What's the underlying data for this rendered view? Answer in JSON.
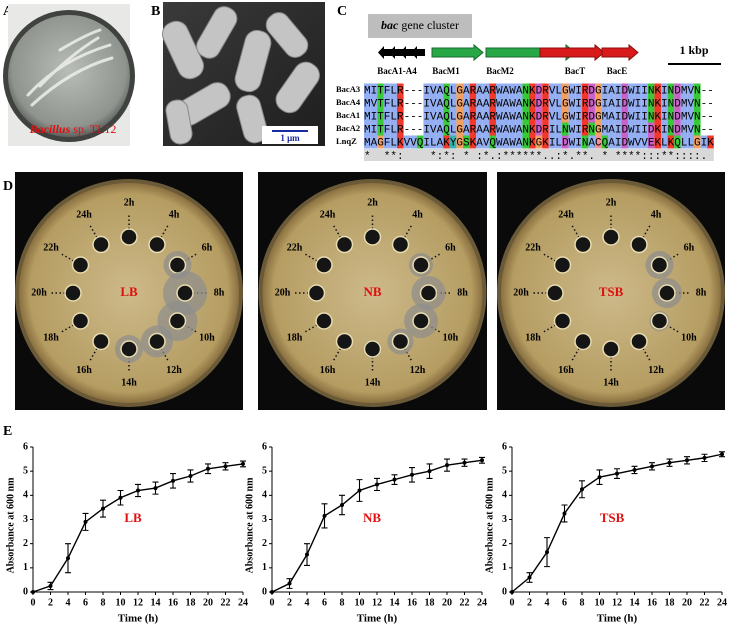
{
  "panel_a": {
    "label": "A",
    "caption_genus": "Bacillus",
    "caption_rest": "sp. TL12"
  },
  "panel_b": {
    "label": "B",
    "scale_bar": "1 μm"
  },
  "panel_c": {
    "label": "C",
    "cluster_title_italic": "bac",
    "cluster_title_rest": "gene cluster",
    "genes": [
      "BacA1-A4",
      "BacM1",
      "BacM2",
      "BacT",
      "BacE"
    ],
    "scale_bar": "1 kbp",
    "alignment": [
      {
        "name": "BacA3",
        "sequence": "MITFLR---IVAQLGARAARWAWANKDRVLGWIRDGIAIDWIINKINDMVN--"
      },
      {
        "name": "BacA4",
        "sequence": "MVTFLR---IVAQLGARAARWAWANKDRVLGWIRDGIAIDWIINKINDMVN--"
      },
      {
        "name": "BacA1",
        "sequence": "MITFLR---IVAQLGARAARWAWANKDRVLGWIRDGMAIDWIINKINDMVN--"
      },
      {
        "name": "BacA2",
        "sequence": "MITFLR---IVAQLGARAARWAWANKDRILNWIRNGMAIDWIIDKINDMVN--"
      },
      {
        "name": "LnqZ",
        "sequence": "MAGFLKVVQILAKYGSKAVQWAWANKGKILDWINACQAIDWVVEKLKQLLGIK"
      }
    ],
    "conservation": "*  **:    *:*: * :*.:******..:*.**. * ****:::**::::.  "
  },
  "panel_d": {
    "label": "D",
    "media": [
      "LB",
      "NB",
      "TSB"
    ],
    "time_labels": [
      "2h",
      "4h",
      "6h",
      "8h",
      "10h",
      "12h",
      "14h",
      "16h",
      "18h",
      "20h",
      "22h",
      "24h"
    ]
  },
  "panel_e": {
    "label": "E"
  },
  "chart_data": [
    {
      "type": "line",
      "annotation": "LB",
      "x_label": "Time (h)",
      "y_label": "Absorbance at 600 nm",
      "color": "#000000",
      "x": [
        0,
        2,
        4,
        6,
        8,
        10,
        12,
        14,
        16,
        18,
        20,
        22,
        24
      ],
      "values": [
        0,
        0.25,
        1.4,
        2.9,
        3.45,
        3.9,
        4.2,
        4.3,
        4.6,
        4.8,
        5.1,
        5.2,
        5.3
      ],
      "errors": [
        0,
        0.15,
        0.6,
        0.35,
        0.35,
        0.3,
        0.25,
        0.25,
        0.3,
        0.25,
        0.2,
        0.15,
        0.12
      ],
      "xlim": [
        0,
        24
      ],
      "xticks": [
        0,
        2,
        4,
        6,
        8,
        10,
        12,
        14,
        16,
        18,
        20,
        22,
        24
      ],
      "ylim": [
        0,
        6
      ],
      "yticks": [
        0,
        1,
        2,
        3,
        4,
        5,
        6
      ]
    },
    {
      "type": "line",
      "annotation": "NB",
      "x_label": "Time (h)",
      "y_label": "Absorbance at 600 nm",
      "color": "#000000",
      "x": [
        0,
        2,
        4,
        6,
        8,
        10,
        12,
        14,
        16,
        18,
        20,
        22,
        24
      ],
      "values": [
        0,
        0.35,
        1.55,
        3.15,
        3.6,
        4.2,
        4.45,
        4.65,
        4.85,
        5.0,
        5.25,
        5.35,
        5.45
      ],
      "errors": [
        0,
        0.2,
        0.45,
        0.5,
        0.4,
        0.45,
        0.25,
        0.2,
        0.3,
        0.3,
        0.25,
        0.15,
        0.12
      ],
      "xlim": [
        0,
        24
      ],
      "xticks": [
        0,
        2,
        4,
        6,
        8,
        10,
        12,
        14,
        16,
        18,
        20,
        22,
        24
      ],
      "ylim": [
        0,
        6
      ],
      "yticks": [
        0,
        1,
        2,
        3,
        4,
        5,
        6
      ]
    },
    {
      "type": "line",
      "annotation": "TSB",
      "x_label": "Time (h)",
      "y_label": "Absorbance at 600 nm",
      "color": "#000000",
      "x": [
        0,
        2,
        4,
        6,
        8,
        10,
        12,
        14,
        16,
        18,
        20,
        22,
        24
      ],
      "values": [
        0,
        0.6,
        1.65,
        3.25,
        4.25,
        4.75,
        4.9,
        5.05,
        5.2,
        5.35,
        5.45,
        5.55,
        5.7
      ],
      "errors": [
        0,
        0.2,
        0.6,
        0.35,
        0.35,
        0.3,
        0.2,
        0.15,
        0.15,
        0.15,
        0.15,
        0.15,
        0.1
      ],
      "xlim": [
        0,
        24
      ],
      "xticks": [
        0,
        2,
        4,
        6,
        8,
        10,
        12,
        14,
        16,
        18,
        20,
        22,
        24
      ],
      "ylim": [
        0,
        6
      ],
      "yticks": [
        0,
        1,
        2,
        3,
        4,
        5,
        6
      ]
    }
  ]
}
